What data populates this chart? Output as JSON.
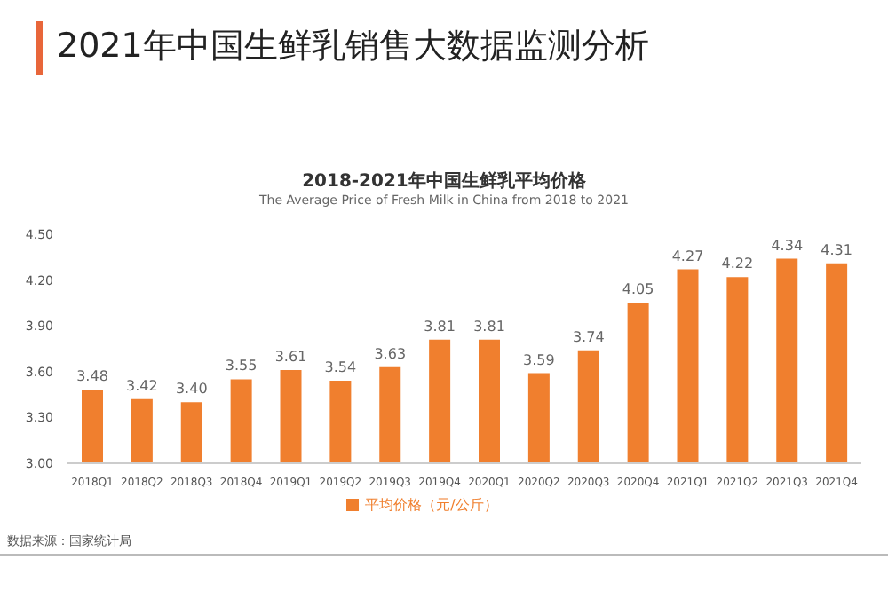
{
  "chart_data": {
    "type": "bar",
    "title": "2021年中国生鲜乳销售大数据监测分析",
    "subtitle": "2018-2021年中国生鲜乳平均价格",
    "annotations": [
      "The Average Price of Fresh Milk in China from 2018 to 2021",
      "数据来源：国家统计局"
    ],
    "categories": [
      "2018Q1",
      "2018Q2",
      "2018Q3",
      "2018Q4",
      "2019Q1",
      "2019Q2",
      "2019Q3",
      "2019Q4",
      "2020Q1",
      "2020Q2",
      "2020Q3",
      "2020Q4",
      "2021Q1",
      "2021Q2",
      "2021Q3",
      "2021Q4"
    ],
    "series": [
      {
        "name": "平均价格（元/公斤）",
        "color": "#f07f2e",
        "values": [
          3.48,
          3.42,
          3.4,
          3.55,
          3.61,
          3.54,
          3.63,
          3.81,
          3.81,
          3.59,
          3.74,
          4.05,
          4.27,
          4.22,
          4.34,
          4.31
        ],
        "value_labels": [
          "3.48",
          "3.42",
          "3.40",
          "3.55",
          "3.61",
          "3.54",
          "3.63",
          "3.81",
          "3.81",
          "3.59",
          "3.74",
          "4.05",
          "4.27",
          "4.22",
          "4.34",
          "4.31"
        ]
      }
    ],
    "ylim": [
      3.0,
      4.5
    ],
    "yticks": [
      {
        "value": 3.0,
        "label": "3.00"
      },
      {
        "value": 3.3,
        "label": "3.30"
      },
      {
        "value": 3.6,
        "label": "3.60"
      },
      {
        "value": 3.9,
        "label": "3.90"
      },
      {
        "value": 4.2,
        "label": "4.20"
      },
      {
        "value": 4.5,
        "label": "4.50"
      }
    ],
    "legend": "bottom",
    "grid": false
  }
}
